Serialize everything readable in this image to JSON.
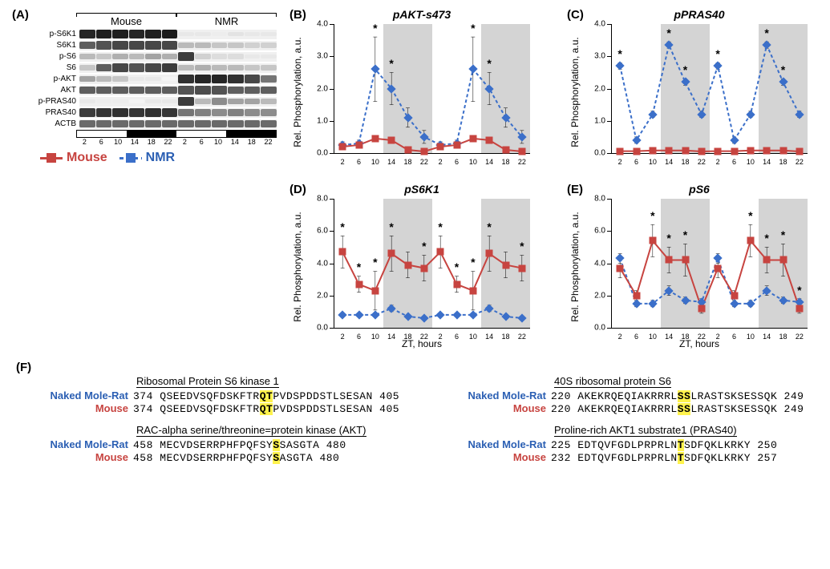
{
  "panels": {
    "A": {
      "label": "(A)"
    },
    "B": {
      "label": "(B)",
      "title": "pAKT-s473"
    },
    "C": {
      "label": "(C)",
      "title": "pPRAS40"
    },
    "D": {
      "label": "(D)",
      "title": "pS6K1"
    },
    "E": {
      "label": "(E)",
      "title": "pS6"
    },
    "F": {
      "label": "(F)"
    }
  },
  "blot": {
    "species": [
      "Mouse",
      "NMR"
    ],
    "proteins": [
      "p-S6K1",
      "S6K1",
      "p-S6",
      "S6",
      "p-AKT",
      "AKT",
      "p-PRAS40",
      "PRAS40",
      "ACTB"
    ],
    "band_intensity": {
      "p-S6K1": [
        0.95,
        0.98,
        0.98,
        0.95,
        0.97,
        0.99,
        0.1,
        0.1,
        0.08,
        0.12,
        0.1,
        0.1
      ],
      "S6K1": [
        0.7,
        0.75,
        0.8,
        0.8,
        0.8,
        0.8,
        0.3,
        0.3,
        0.25,
        0.25,
        0.2,
        0.2
      ],
      "p-S6": [
        0.3,
        0.25,
        0.35,
        0.3,
        0.4,
        0.35,
        0.85,
        0.2,
        0.15,
        0.15,
        0.1,
        0.1
      ],
      "S6": [
        0.25,
        0.7,
        0.8,
        0.75,
        0.8,
        0.85,
        0.3,
        0.35,
        0.3,
        0.3,
        0.25,
        0.25
      ],
      "p-AKT": [
        0.4,
        0.3,
        0.25,
        0.1,
        0.1,
        0.05,
        0.9,
        0.95,
        0.95,
        0.9,
        0.8,
        0.6
      ],
      "AKT": [
        0.7,
        0.7,
        0.7,
        0.7,
        0.7,
        0.7,
        0.75,
        0.78,
        0.75,
        0.7,
        0.7,
        0.7
      ],
      "p-PRAS40": [
        0.1,
        0.08,
        0.08,
        0.05,
        0.1,
        0.1,
        0.85,
        0.3,
        0.5,
        0.4,
        0.4,
        0.3
      ],
      "PRAS40": [
        0.85,
        0.88,
        0.9,
        0.88,
        0.9,
        0.88,
        0.6,
        0.55,
        0.5,
        0.55,
        0.5,
        0.5
      ],
      "ACTB": [
        0.65,
        0.65,
        0.65,
        0.65,
        0.65,
        0.65,
        0.65,
        0.65,
        0.65,
        0.65,
        0.65,
        0.65
      ]
    },
    "zt_labels": [
      "2",
      "6",
      "10",
      "14",
      "18",
      "22",
      "2",
      "6",
      "10",
      "14",
      "18",
      "22"
    ]
  },
  "colors": {
    "mouse": "#c74440",
    "nmr": "#3b6fc9",
    "shade": "#cccccc",
    "axis": "#000000",
    "highlight": "#fff34d"
  },
  "legend": {
    "mouse_label": "Mouse",
    "nmr_label": "NMR"
  },
  "axis": {
    "ylabel": "Rel. Phosphorylation, a.u.",
    "xlabel": "ZT, hours",
    "xticks": [
      2,
      6,
      10,
      14,
      18,
      22,
      26,
      30,
      34,
      38,
      42,
      46
    ],
    "xtick_labels": [
      "2",
      "6",
      "10",
      "14",
      "18",
      "22",
      "2",
      "6",
      "10",
      "14",
      "18",
      "22"
    ],
    "shade_ranges": [
      [
        12,
        24
      ],
      [
        36,
        48
      ]
    ]
  },
  "charts": {
    "B": {
      "ymax": 4,
      "ytick_step": 1,
      "mouse": [
        0.2,
        0.25,
        0.45,
        0.4,
        0.1,
        0.05,
        0.2,
        0.25,
        0.45,
        0.4,
        0.1,
        0.05
      ],
      "mouse_err": [
        0.1,
        0.1,
        0.1,
        0.1,
        0.05,
        0.05,
        0.1,
        0.1,
        0.1,
        0.1,
        0.05,
        0.05
      ],
      "nmr": [
        0.25,
        0.3,
        2.6,
        2.0,
        1.1,
        0.5,
        0.25,
        0.3,
        2.6,
        2.0,
        1.1,
        0.5
      ],
      "nmr_err": [
        0.1,
        0.1,
        1.0,
        0.5,
        0.3,
        0.2,
        0.1,
        0.1,
        1.0,
        0.5,
        0.3,
        0.2
      ],
      "sig_idx": [
        2,
        3,
        8,
        9
      ]
    },
    "C": {
      "ymax": 4,
      "ytick_step": 1,
      "mouse": [
        0.06,
        0.06,
        0.08,
        0.08,
        0.08,
        0.05,
        0.06,
        0.06,
        0.08,
        0.08,
        0.08,
        0.05
      ],
      "mouse_err": [
        0.03,
        0.03,
        0.03,
        0.03,
        0.03,
        0.03,
        0.03,
        0.03,
        0.03,
        0.03,
        0.03,
        0.03
      ],
      "nmr": [
        2.7,
        0.4,
        1.2,
        3.35,
        2.2,
        1.2,
        2.7,
        0.4,
        1.2,
        3.35,
        2.2,
        1.2
      ],
      "nmr_err": [
        0.1,
        0.1,
        0.1,
        0.1,
        0.1,
        0.1,
        0.1,
        0.1,
        0.1,
        0.1,
        0.1,
        0.1
      ],
      "sig_idx": [
        0,
        3,
        4,
        6,
        9,
        10
      ]
    },
    "D": {
      "ymax": 8,
      "ytick_step": 2,
      "mouse": [
        4.7,
        2.7,
        2.3,
        4.6,
        3.9,
        3.7,
        4.7,
        2.7,
        2.3,
        4.6,
        3.9,
        3.7
      ],
      "mouse_err": [
        1.0,
        0.5,
        1.2,
        1.1,
        0.8,
        0.8,
        1.0,
        0.5,
        1.2,
        1.1,
        0.8,
        0.8
      ],
      "nmr": [
        0.8,
        0.8,
        0.8,
        1.2,
        0.7,
        0.6,
        0.8,
        0.8,
        0.8,
        1.2,
        0.7,
        0.6
      ],
      "nmr_err": [
        0.1,
        0.1,
        0.1,
        0.2,
        0.1,
        0.1,
        0.1,
        0.1,
        0.1,
        0.2,
        0.1,
        0.1
      ],
      "sig_idx": [
        0,
        1,
        2,
        3,
        5,
        6,
        7,
        8,
        9,
        11
      ]
    },
    "E": {
      "ymax": 8,
      "ytick_step": 2,
      "mouse": [
        3.7,
        2.0,
        5.4,
        4.2,
        4.2,
        1.2,
        3.7,
        2.0,
        5.4,
        4.2,
        4.2,
        1.2
      ],
      "mouse_err": [
        0.6,
        0.3,
        1.0,
        0.8,
        1.0,
        0.3,
        0.6,
        0.3,
        1.0,
        0.8,
        1.0,
        0.3
      ],
      "nmr": [
        4.3,
        1.5,
        1.5,
        2.3,
        1.7,
        1.6,
        4.3,
        1.5,
        1.5,
        2.3,
        1.7,
        1.6
      ],
      "nmr_err": [
        0.3,
        0.2,
        0.2,
        0.3,
        0.2,
        0.2,
        0.3,
        0.2,
        0.2,
        0.3,
        0.2,
        0.2
      ],
      "sig_idx": [
        2,
        3,
        4,
        8,
        9,
        10,
        11
      ]
    }
  },
  "sequences": {
    "col1": [
      {
        "title": "Ribosomal Protein S6 kinase 1",
        "rows": [
          {
            "sp": "Naked Mole-Rat",
            "cl": "nmr-c",
            "start": "374",
            "seq": "QSEEDVSQFDSKFTR",
            "hl": "QT",
            "post": "PVDSPDDSTLSESAN",
            "end": "405"
          },
          {
            "sp": "Mouse",
            "cl": "mouse-c",
            "start": "374",
            "seq": "QSEEDVSQFDSKFTR",
            "hl": "QT",
            "post": "PVDSPDDSTLSESAN",
            "end": "405"
          }
        ]
      },
      {
        "title": "RAC-alpha serine/threonine=protein kinase (AKT)",
        "rows": [
          {
            "sp": "Naked Mole-Rat",
            "cl": "nmr-c",
            "start": "458",
            "seq": "MECVDSERRPHFPQFSY",
            "hl": "S",
            "post": "SASGTA",
            "end": "480"
          },
          {
            "sp": "Mouse",
            "cl": "mouse-c",
            "start": "458",
            "seq": "MECVDSERRPHFPQFSY",
            "hl": "S",
            "post": "ASGTA",
            "end": "480"
          }
        ]
      }
    ],
    "col2": [
      {
        "title": "40S ribosomal protein S6",
        "rows": [
          {
            "sp": "Naked Mole-Rat",
            "cl": "nmr-c",
            "start": "220",
            "seq": "AKEKRQEQIAKRRRL",
            "hl": "SS",
            "post": "LRASTSKSESSQK",
            "end": "249"
          },
          {
            "sp": "Mouse",
            "cl": "mouse-c",
            "start": "220",
            "seq": "AKEKRQEQIAKRRRL",
            "hl": "SS",
            "post": "LRASTSKSESSQK",
            "end": "249"
          }
        ]
      },
      {
        "title": "Proline-rich AKT1 substrate1 (PRAS40)",
        "rows": [
          {
            "sp": "Naked Mole-Rat",
            "cl": "nmr-c",
            "start": "225",
            "seq": "EDTQVFGDLPRPRLN",
            "hl": "T",
            "post": "SDFQKLKRKY",
            "end": "250"
          },
          {
            "sp": "Mouse",
            "cl": "mouse-c",
            "start": "232",
            "seq": "EDTQVFGDLPRPRLN",
            "hl": "T",
            "post": "SDFQKLKRKY",
            "end": "257"
          }
        ]
      }
    ]
  }
}
